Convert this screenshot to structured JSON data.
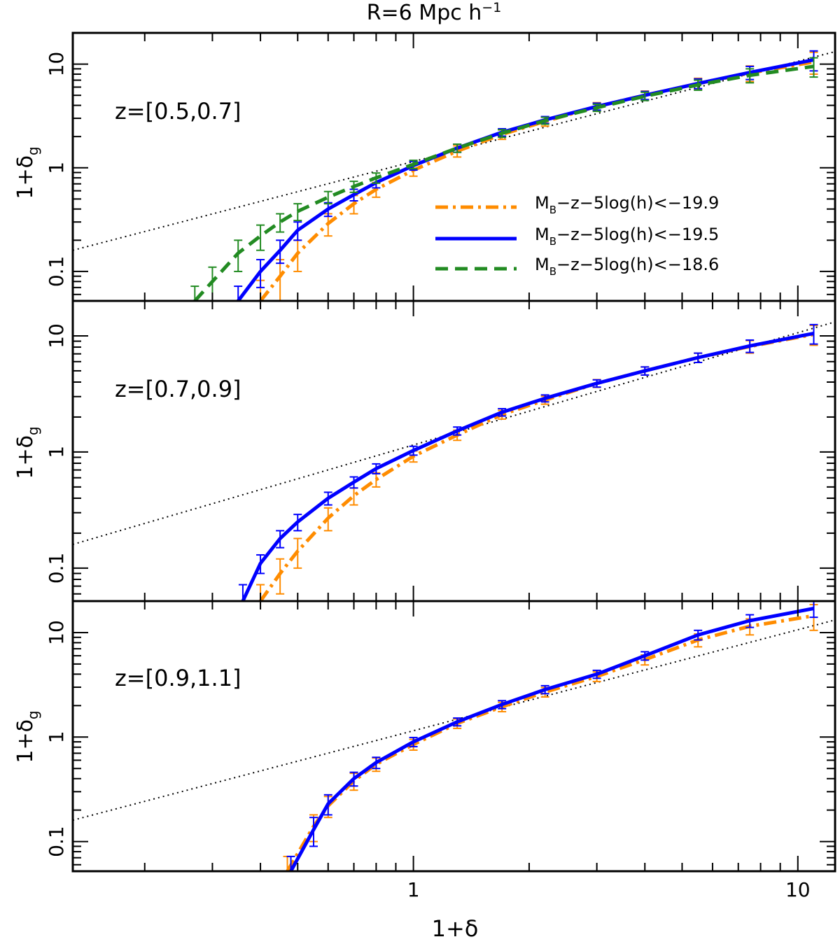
{
  "chart_data": {
    "type": "line",
    "title": "R=6 Mpc h",
    "title_sup": "−1",
    "xlabel": "1+δ",
    "ylabel_main": "1+δ",
    "ylabel_sub": "g",
    "xscale": "log",
    "yscale": "log",
    "xlim": [
      0.13,
      12.5
    ],
    "ylim": [
      0.052,
      20
    ],
    "x_ticks": [
      {
        "value": 1,
        "label": "1"
      },
      {
        "value": 10,
        "label": "10"
      }
    ],
    "y_ticks": [
      {
        "value": 0.1,
        "label": "0.1"
      },
      {
        "value": 1,
        "label": "1"
      },
      {
        "value": 10,
        "label": "10"
      }
    ],
    "reference_line": {
      "description": "power law",
      "points": [
        [
          0.13,
          0.16
        ],
        [
          12.5,
          13.2
        ]
      ]
    },
    "legend": [
      {
        "label_pre": "M",
        "label_sub": "B",
        "label_post": "−z−5log(h)<−19.9",
        "color": "#FF8C00",
        "style": "dashdot"
      },
      {
        "label_pre": "M",
        "label_sub": "B",
        "label_post": "−z−5log(h)<−19.5",
        "color": "#0000FF",
        "style": "solid"
      },
      {
        "label_pre": "M",
        "label_sub": "B",
        "label_post": "−z−5log(h)<−18.6",
        "color": "#228B22",
        "style": "dashed"
      }
    ],
    "panels": [
      {
        "label": "z=[0.5,0.7]",
        "series": [
          {
            "name": "MB−z−5log(h)<−19.9",
            "color": "#FF8C00",
            "style": "dashdot",
            "x": [
              0.4,
              0.45,
              0.5,
              0.6,
              0.7,
              0.8,
              1.0,
              1.3,
              1.7,
              2.2,
              3.0,
              4.0,
              5.5,
              7.5,
              11.0
            ],
            "y": [
              0.052,
              0.09,
              0.15,
              0.29,
              0.45,
              0.62,
              0.95,
              1.45,
              2.1,
              2.8,
              3.9,
              5.0,
              6.5,
              8.2,
              10.5
            ],
            "err": [
              0.03,
              0.04,
              0.05,
              0.07,
              0.09,
              0.1,
              0.12,
              0.18,
              0.22,
              0.28,
              0.35,
              0.5,
              0.8,
              1.4,
              2.5
            ]
          },
          {
            "name": "MB−z−5log(h)<−19.5",
            "color": "#0000FF",
            "style": "solid",
            "x": [
              0.35,
              0.4,
              0.45,
              0.5,
              0.6,
              0.7,
              0.8,
              1.0,
              1.3,
              1.7,
              2.2,
              3.0,
              4.0,
              5.5,
              7.5,
              11.0
            ],
            "y": [
              0.052,
              0.1,
              0.16,
              0.25,
              0.4,
              0.55,
              0.72,
              1.05,
              1.55,
              2.2,
              2.9,
              3.9,
              5.0,
              6.5,
              8.3,
              11.0
            ],
            "err": [
              0.02,
              0.03,
              0.04,
              0.05,
              0.06,
              0.07,
              0.08,
              0.1,
              0.14,
              0.18,
              0.22,
              0.3,
              0.45,
              0.7,
              1.2,
              2.4
            ]
          },
          {
            "name": "MB−z−5log(h)<−18.6",
            "color": "#228B22",
            "style": "dashed",
            "x": [
              0.27,
              0.3,
              0.35,
              0.4,
              0.45,
              0.5,
              0.6,
              0.7,
              0.8,
              1.0,
              1.3,
              1.7,
              2.2,
              3.0,
              4.0,
              5.5,
              7.5,
              11.0
            ],
            "y": [
              0.052,
              0.08,
              0.15,
              0.22,
              0.3,
              0.38,
              0.52,
              0.66,
              0.8,
              1.08,
              1.55,
              2.15,
              2.85,
              3.8,
              4.9,
              6.3,
              7.8,
              9.5
            ],
            "err": [
              0.02,
              0.03,
              0.05,
              0.06,
              0.06,
              0.07,
              0.07,
              0.08,
              0.09,
              0.1,
              0.14,
              0.18,
              0.22,
              0.3,
              0.45,
              0.7,
              1.2,
              2.0
            ]
          }
        ]
      },
      {
        "label": "z=[0.7,0.9]",
        "series": [
          {
            "name": "MB−z−5log(h)<−19.9",
            "color": "#FF8C00",
            "style": "dashdot",
            "x": [
              0.4,
              0.45,
              0.5,
              0.6,
              0.7,
              0.8,
              1.0,
              1.3,
              1.7,
              2.2,
              3.0,
              4.0,
              5.5,
              7.5,
              11.0
            ],
            "y": [
              0.052,
              0.09,
              0.14,
              0.27,
              0.42,
              0.58,
              0.92,
              1.4,
              2.1,
              2.8,
              3.9,
              5.0,
              6.5,
              8.1,
              10.3
            ],
            "err": [
              0.02,
              0.03,
              0.04,
              0.06,
              0.07,
              0.08,
              0.1,
              0.14,
              0.18,
              0.22,
              0.3,
              0.4,
              0.6,
              1.0,
              2.0
            ]
          },
          {
            "name": "MB−z−5log(h)<−19.5",
            "color": "#0000FF",
            "style": "solid",
            "x": [
              0.36,
              0.4,
              0.45,
              0.5,
              0.6,
              0.7,
              0.8,
              1.0,
              1.3,
              1.7,
              2.2,
              3.0,
              4.0,
              5.5,
              7.5,
              11.0
            ],
            "y": [
              0.052,
              0.11,
              0.18,
              0.25,
              0.4,
              0.55,
              0.72,
              1.03,
              1.52,
              2.2,
              2.9,
              3.9,
              5.0,
              6.5,
              8.2,
              10.5
            ],
            "err": [
              0.02,
              0.02,
              0.03,
              0.04,
              0.05,
              0.06,
              0.07,
              0.09,
              0.12,
              0.16,
              0.2,
              0.28,
              0.4,
              0.6,
              1.0,
              2.0
            ]
          }
        ]
      },
      {
        "label": "z=[0.9,1.1]",
        "series": [
          {
            "name": "MB−z−5log(h)<−19.9",
            "color": "#FF8C00",
            "style": "dashdot",
            "x": [
              0.47,
              0.55,
              0.6,
              0.7,
              0.8,
              1.0,
              1.3,
              1.7,
              2.2,
              3.0,
              4.0,
              5.5,
              7.5,
              11.0
            ],
            "y": [
              0.052,
              0.14,
              0.22,
              0.38,
              0.55,
              0.85,
              1.35,
              1.95,
              2.7,
              3.8,
              5.5,
              8.5,
              11.5,
              14.5
            ],
            "err": [
              0.02,
              0.04,
              0.05,
              0.07,
              0.08,
              0.1,
              0.14,
              0.2,
              0.28,
              0.4,
              0.6,
              1.2,
              2.0,
              4.0
            ]
          },
          {
            "name": "MB−z−5log(h)<−19.5",
            "color": "#0000FF",
            "style": "solid",
            "x": [
              0.48,
              0.55,
              0.6,
              0.7,
              0.8,
              1.0,
              1.3,
              1.7,
              2.2,
              3.0,
              4.0,
              5.5,
              7.5,
              11.0
            ],
            "y": [
              0.052,
              0.13,
              0.23,
              0.4,
              0.57,
              0.9,
              1.4,
              2.05,
              2.85,
              4.0,
              6.0,
              9.5,
              13.0,
              17.0
            ],
            "err": [
              0.02,
              0.04,
              0.05,
              0.06,
              0.07,
              0.09,
              0.12,
              0.18,
              0.25,
              0.35,
              0.55,
              1.0,
              1.8,
              3.0
            ]
          }
        ]
      }
    ]
  }
}
